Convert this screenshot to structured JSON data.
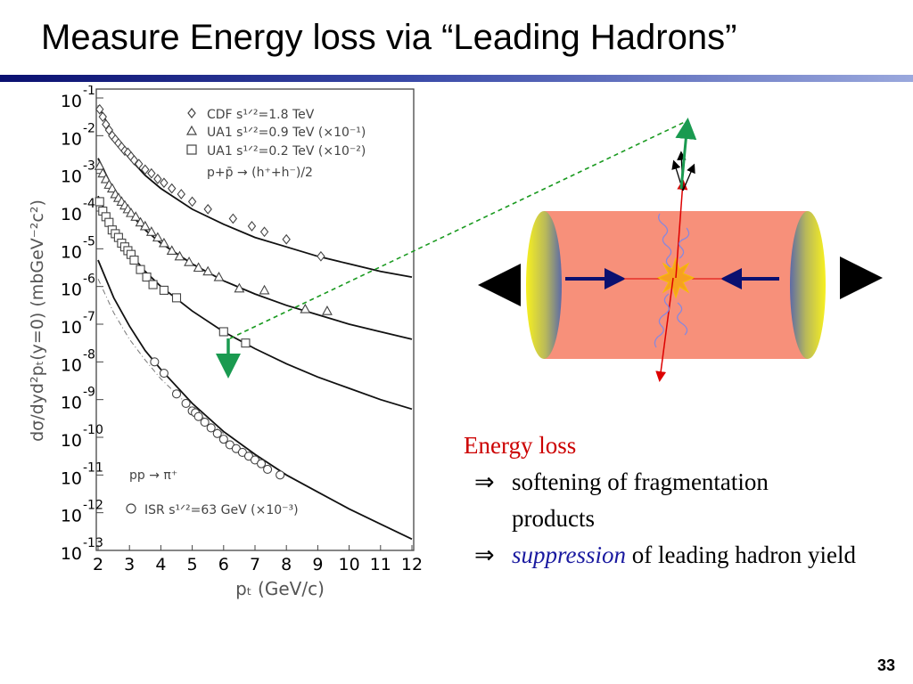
{
  "slide": {
    "title": "Measure Energy loss via “Leading Hadrons”",
    "page_number": "33"
  },
  "text_block": {
    "heading": "Energy loss",
    "bullet_symbol": "⇒",
    "bullet1": "softening of fragmentation products",
    "bullet2_em": "suppression",
    "bullet2_rest": " of leading hadron yield"
  },
  "colors": {
    "title_bar": "#0a1070",
    "heading": "#cc0000",
    "emphasis": "#1a1aa0",
    "cylinder_fill": "#f7907a",
    "cap_yellow": "#f7f020",
    "jet_red": "#dd0000",
    "projectile_blue": "#0a1070",
    "leading_arrow_green": "#1a9a50"
  },
  "chart_data": {
    "type": "scatter",
    "xlabel": "pₜ (GeV/c)",
    "ylabel": "dσ/dyd²pₜ(y=0) (mbGeV⁻²c²)",
    "xlim": [
      2,
      12
    ],
    "ylim_exponent": [
      -13,
      -1
    ],
    "log_y": true,
    "x_ticks": [
      "2",
      "3",
      "4",
      "5",
      "6",
      "7",
      "8",
      "9",
      "10",
      "11",
      "12"
    ],
    "y_ticks": [
      {
        "base": "10",
        "exp": "-1"
      },
      {
        "base": "10",
        "exp": "-2"
      },
      {
        "base": "10",
        "exp": "-3"
      },
      {
        "base": "10",
        "exp": "-4"
      },
      {
        "base": "10",
        "exp": "-5"
      },
      {
        "base": "10",
        "exp": "-6"
      },
      {
        "base": "10",
        "exp": "-7"
      },
      {
        "base": "10",
        "exp": "-8"
      },
      {
        "base": "10",
        "exp": "-9"
      },
      {
        "base": "10",
        "exp": "-10"
      },
      {
        "base": "10",
        "exp": "-11"
      },
      {
        "base": "10",
        "exp": "-12"
      },
      {
        "base": "10",
        "exp": "-13"
      }
    ],
    "legend_top": {
      "position": "top-right",
      "entries": [
        {
          "marker": "diamond",
          "text": "CDF s¹ᐟ²=1.8 TeV"
        },
        {
          "marker": "triangle",
          "text": "UA1 s¹ᐟ²=0.9 TeV (×10⁻¹)"
        },
        {
          "marker": "square",
          "text": "UA1 s¹ᐟ²=0.2 TeV (×10⁻²)"
        }
      ],
      "reaction": "p+p̄ → (h⁺+h⁻)/2"
    },
    "legend_bottom": {
      "position": "bottom-left",
      "reaction": "pp → π⁺",
      "entries": [
        {
          "marker": "circle",
          "text": "ISR s¹ᐟ²=63 GeV (×10⁻³)"
        }
      ]
    },
    "series": [
      {
        "name": "CDF s^1/2=1.8 TeV",
        "marker": "diamond",
        "x": [
          2.05,
          2.15,
          2.25,
          2.35,
          2.45,
          2.55,
          2.65,
          2.75,
          2.85,
          2.95,
          3.05,
          3.15,
          3.3,
          3.5,
          3.7,
          3.9,
          4.1,
          4.35,
          4.65,
          5.0,
          5.5,
          6.3,
          6.9,
          7.3,
          8.0,
          9.1
        ],
        "log10_y": [
          -1.3,
          -1.5,
          -1.7,
          -1.85,
          -2.0,
          -2.1,
          -2.2,
          -2.3,
          -2.4,
          -2.45,
          -2.55,
          -2.65,
          -2.75,
          -2.9,
          -3.0,
          -3.15,
          -3.25,
          -3.4,
          -3.55,
          -3.75,
          -3.95,
          -4.2,
          -4.4,
          -4.55,
          -4.75,
          -5.2
        ]
      },
      {
        "name": "UA1 s^1/2=0.9 TeV",
        "marker": "triangle",
        "x": [
          2.05,
          2.15,
          2.25,
          2.35,
          2.45,
          2.55,
          2.65,
          2.75,
          2.85,
          2.95,
          3.05,
          3.2,
          3.35,
          3.5,
          3.7,
          3.9,
          4.1,
          4.35,
          4.6,
          4.9,
          5.2,
          5.5,
          5.85,
          6.5,
          7.3,
          8.6,
          9.3
        ],
        "log10_y": [
          -2.8,
          -3.0,
          -3.15,
          -3.3,
          -3.4,
          -3.55,
          -3.65,
          -3.75,
          -3.85,
          -3.95,
          -4.05,
          -4.15,
          -4.3,
          -4.4,
          -4.55,
          -4.7,
          -4.85,
          -5.05,
          -5.2,
          -5.35,
          -5.5,
          -5.6,
          -5.75,
          -6.05,
          -6.1,
          -6.6,
          -6.65
        ]
      },
      {
        "name": "UA1 s^1/2=0.2 TeV",
        "marker": "square",
        "x": [
          2.05,
          2.15,
          2.25,
          2.35,
          2.45,
          2.55,
          2.65,
          2.75,
          2.85,
          2.95,
          3.05,
          3.15,
          3.35,
          3.55,
          3.75,
          4.1,
          4.5,
          6.0,
          6.7
        ],
        "log10_y": [
          -3.75,
          -4.0,
          -4.15,
          -4.3,
          -4.5,
          -4.6,
          -4.7,
          -4.85,
          -4.95,
          -5.05,
          -5.15,
          -5.3,
          -5.55,
          -5.75,
          -5.95,
          -6.1,
          -6.3,
          -7.2,
          -7.5
        ]
      },
      {
        "name": "ISR s^1/2=63 GeV",
        "marker": "circle",
        "x": [
          3.8,
          4.1,
          4.5,
          4.8,
          5.0,
          5.1,
          5.2,
          5.4,
          5.6,
          5.8,
          6.0,
          6.2,
          6.4,
          6.6,
          6.8,
          7.0,
          7.2,
          7.4,
          7.8
        ],
        "log10_y": [
          -8.0,
          -8.3,
          -8.85,
          -9.1,
          -9.3,
          -9.35,
          -9.45,
          -9.6,
          -9.75,
          -9.9,
          -10.05,
          -10.2,
          -10.3,
          -10.4,
          -10.5,
          -10.6,
          -10.7,
          -10.85,
          -11.0
        ]
      }
    ],
    "fit_curves": [
      {
        "x": [
          2.0,
          2.5,
          3,
          3.5,
          4,
          5,
          6,
          7,
          8,
          9,
          10,
          11,
          12
        ],
        "log10_y": [
          -1.2,
          -2.0,
          -2.6,
          -3.05,
          -3.4,
          -3.95,
          -4.35,
          -4.7,
          -4.95,
          -5.2,
          -5.4,
          -5.6,
          -5.75
        ]
      },
      {
        "x": [
          2.0,
          2.5,
          3,
          3.5,
          4,
          5,
          6,
          7,
          8,
          9,
          10,
          11,
          12
        ],
        "log10_y": [
          -2.6,
          -3.45,
          -4.05,
          -4.5,
          -4.85,
          -5.4,
          -5.85,
          -6.2,
          -6.5,
          -6.75,
          -7.0,
          -7.2,
          -7.4
        ]
      },
      {
        "x": [
          2.0,
          2.5,
          3,
          3.5,
          4,
          5,
          6,
          7,
          8,
          9,
          10,
          11,
          12
        ],
        "log10_y": [
          -3.6,
          -4.5,
          -5.1,
          -5.6,
          -6.0,
          -6.65,
          -7.2,
          -7.65,
          -8.05,
          -8.4,
          -8.7,
          -9.0,
          -9.25
        ]
      },
      {
        "x": [
          2.0,
          2.5,
          3,
          3.5,
          4,
          5,
          6,
          7,
          8,
          9,
          10,
          11,
          12
        ],
        "log10_y": [
          -5.3,
          -6.3,
          -7.05,
          -7.7,
          -8.2,
          -9.1,
          -9.85,
          -10.45,
          -11.0,
          -11.45,
          -11.9,
          -12.3,
          -12.7
        ]
      },
      {
        "style": "dashdot",
        "x": [
          2.0,
          2.5,
          3,
          3.5,
          4,
          5,
          6
        ],
        "log10_y": [
          -5.8,
          -6.7,
          -7.4,
          -7.95,
          -8.45,
          -9.25,
          -9.9
        ]
      }
    ]
  }
}
